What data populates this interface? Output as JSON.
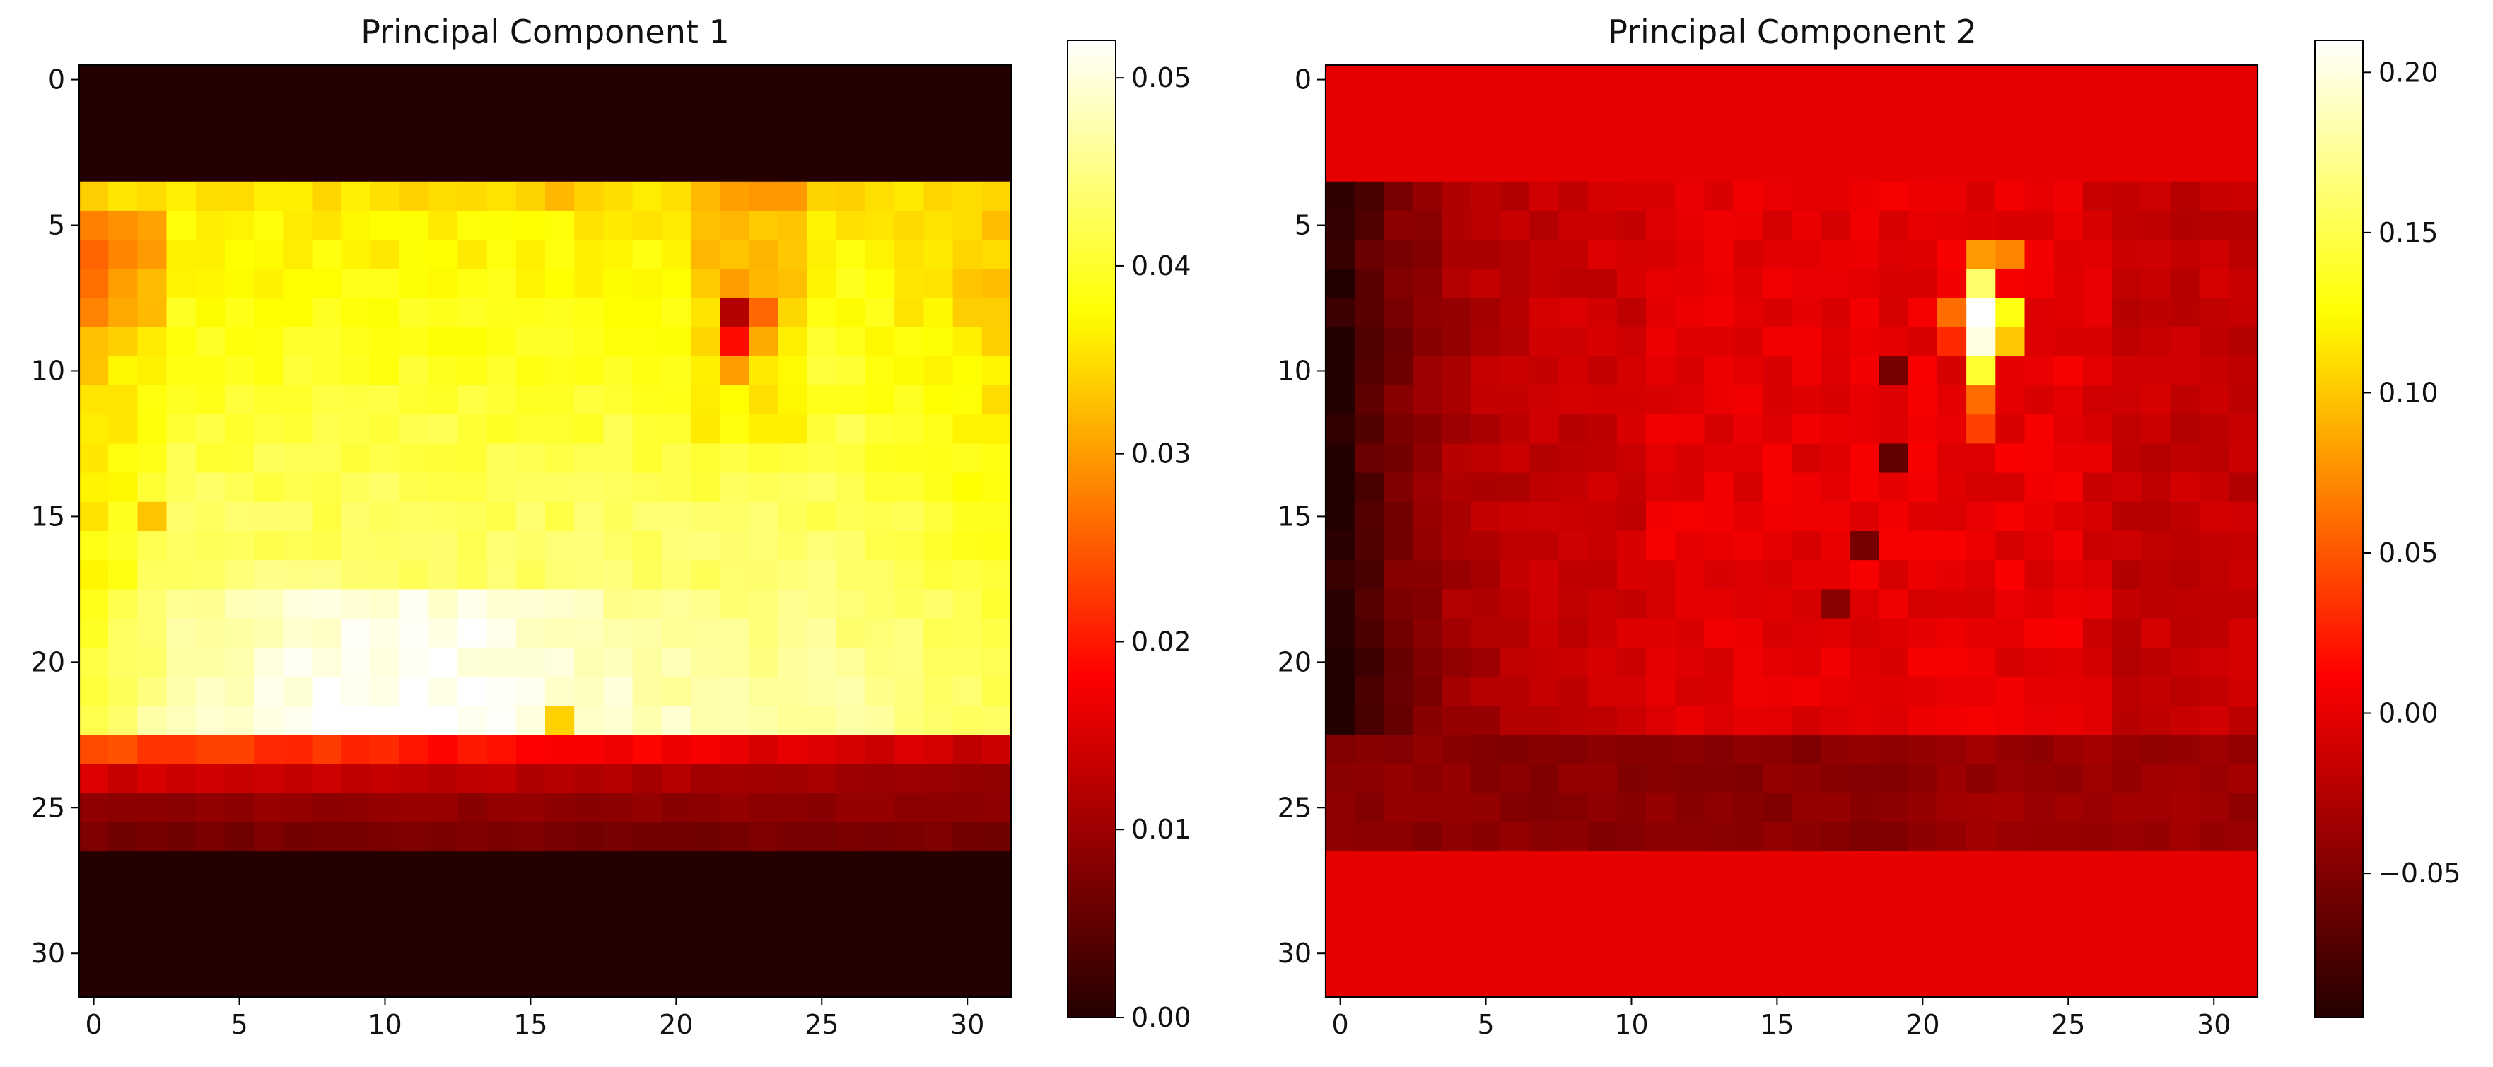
{
  "chart_data": [
    {
      "type": "heatmap",
      "title": "Principal Component 1",
      "colormap": "hot",
      "grid": false,
      "xlim": [
        -0.5,
        31.5
      ],
      "ylim": [
        31.5,
        -0.5
      ],
      "xticks": [
        0,
        5,
        10,
        15,
        20,
        25,
        30
      ],
      "yticks": [
        0,
        5,
        10,
        15,
        20,
        25,
        30
      ],
      "colorbar": {
        "min": 0.0,
        "max": 0.052,
        "ticks": [
          "0.00",
          "0.01",
          "0.02",
          "0.03",
          "0.04",
          "0.05"
        ],
        "tick_values": [
          0.0,
          0.01,
          0.02,
          0.03,
          0.04,
          0.05
        ]
      },
      "rows_summary": [
        {
          "rows": [
            0,
            3
          ],
          "value": 0.0
        },
        {
          "rows": [
            4,
            4
          ],
          "value": 0.036
        },
        {
          "rows": [
            5,
            12
          ],
          "value": 0.04
        },
        {
          "rows": [
            13,
            17
          ],
          "value": 0.043
        },
        {
          "rows": [
            18,
            22
          ],
          "value": 0.047
        },
        {
          "rows": [
            23,
            23
          ],
          "value": 0.024
        },
        {
          "rows": [
            24,
            24
          ],
          "value": 0.014
        },
        {
          "rows": [
            25,
            26
          ],
          "value": 0.008
        },
        {
          "rows": [
            27,
            31
          ],
          "value": 0.0
        }
      ],
      "features": [
        {
          "row": 8,
          "col": 22,
          "value": 0.012
        },
        {
          "row": 9,
          "col": 22,
          "value": 0.019
        },
        {
          "row": 21,
          "col": 9,
          "value": 0.051
        }
      ]
    },
    {
      "type": "heatmap",
      "title": "Principal Component 2",
      "colormap": "hot",
      "grid": false,
      "xlim": [
        -0.5,
        31.5
      ],
      "ylim": [
        31.5,
        -0.5
      ],
      "xticks": [
        0,
        5,
        10,
        15,
        20,
        25,
        30
      ],
      "yticks": [
        0,
        5,
        10,
        15,
        20,
        25,
        30
      ],
      "colorbar": {
        "min": -0.095,
        "max": 0.21,
        "ticks": [
          "−0.05",
          "0.00",
          "0.05",
          "0.10",
          "0.15",
          "0.20"
        ],
        "tick_values": [
          -0.05,
          0.0,
          0.05,
          0.1,
          0.15,
          0.2
        ]
      },
      "rows_summary": [
        {
          "rows": [
            0,
            3
          ],
          "value": 0.0
        },
        {
          "rows": [
            4,
            22
          ],
          "value": 0.0
        },
        {
          "rows": [
            23,
            26
          ],
          "value": -0.04
        },
        {
          "rows": [
            27,
            31
          ],
          "value": 0.0
        }
      ],
      "features": [
        {
          "row": 8,
          "col": 22,
          "value": 0.2
        },
        {
          "row": 9,
          "col": 22,
          "value": 0.19
        },
        {
          "row": 12,
          "col": 19,
          "value": -0.05
        }
      ]
    }
  ]
}
